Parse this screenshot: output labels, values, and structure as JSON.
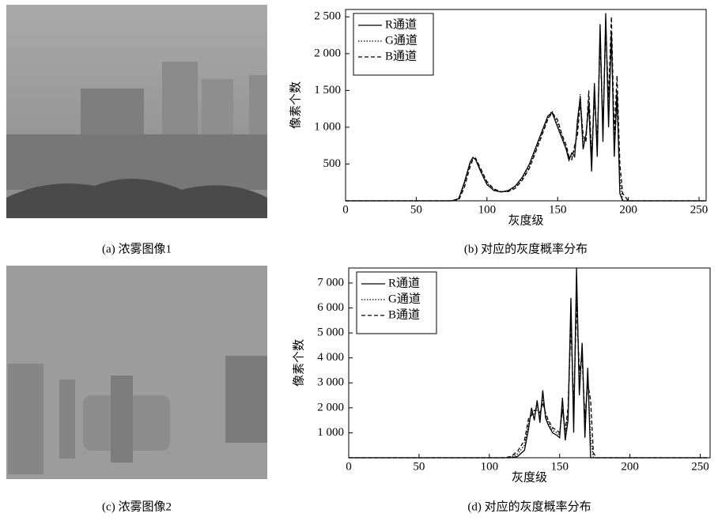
{
  "images": [
    {
      "caption": "(a) 浓雾图像1"
    },
    {
      "caption": "(c) 浓雾图像2"
    }
  ],
  "chart_data": [
    {
      "type": "line",
      "caption": "(b) 对应的灰度概率分布",
      "x_label": "灰度级",
      "y_label": "像素个数",
      "xlim": [
        0,
        255
      ],
      "ylim": [
        0,
        2600
      ],
      "xticks": [
        0,
        50,
        100,
        150,
        200,
        250
      ],
      "yticks": [
        500,
        {
          "value": 1000,
          "label": "1 000"
        },
        {
          "value": 1500,
          "label": "1 500"
        },
        {
          "value": 2000,
          "label": "2 000"
        },
        {
          "value": 2500,
          "label": "2 500"
        }
      ],
      "legend": "upper left",
      "x": [
        0,
        70,
        75,
        80,
        84,
        88,
        90,
        92,
        95,
        100,
        105,
        110,
        115,
        120,
        125,
        130,
        135,
        140,
        143,
        146,
        150,
        153,
        156,
        158,
        160,
        162,
        164,
        166,
        168,
        170,
        172,
        174,
        176,
        178,
        180,
        182,
        184,
        186,
        188,
        190,
        192,
        194,
        196,
        200,
        255
      ],
      "series": [
        {
          "name": "R通道",
          "color": "#000000",
          "dash": "solid",
          "values": [
            0,
            0,
            0,
            30,
            250,
            520,
            590,
            560,
            420,
            220,
            140,
            120,
            140,
            200,
            320,
            500,
            750,
            1000,
            1150,
            1200,
            1000,
            850,
            700,
            550,
            650,
            600,
            1100,
            1400,
            700,
            900,
            1300,
            400,
            1600,
            600,
            2400,
            800,
            2550,
            1000,
            2300,
            600,
            1500,
            100,
            0,
            0,
            0
          ]
        },
        {
          "name": "G通道",
          "color": "#000000",
          "dash": "dotted",
          "values": [
            0,
            0,
            0,
            20,
            220,
            500,
            580,
            570,
            440,
            240,
            150,
            120,
            130,
            190,
            300,
            470,
            720,
            980,
            1120,
            1220,
            1050,
            880,
            720,
            580,
            600,
            700,
            1000,
            1450,
            800,
            850,
            1400,
            500,
            1500,
            700,
            2300,
            900,
            2450,
            1200,
            2200,
            800,
            1300,
            300,
            0,
            0,
            0
          ]
        },
        {
          "name": "B通道",
          "color": "#000000",
          "dash": "dashed",
          "values": [
            0,
            0,
            0,
            10,
            180,
            460,
            560,
            580,
            460,
            260,
            160,
            125,
            125,
            170,
            280,
            440,
            690,
            950,
            1100,
            1200,
            1100,
            900,
            760,
            600,
            560,
            750,
            900,
            1350,
            900,
            800,
            1500,
            600,
            1400,
            800,
            2200,
            1000,
            2350,
            1400,
            2500,
            900,
            1700,
            500,
            100,
            0,
            0
          ]
        }
      ]
    },
    {
      "type": "line",
      "caption": "(d) 对应的灰度概率分布",
      "x_label": "灰度级",
      "y_label": "像素个数",
      "xlim": [
        0,
        257
      ],
      "ylim": [
        0,
        7600
      ],
      "xticks": [
        0,
        50,
        100,
        150,
        200,
        250
      ],
      "yticks": [
        {
          "value": 1000,
          "label": "1 000"
        },
        {
          "value": 2000,
          "label": "2 000"
        },
        {
          "value": 3000,
          "label": "3 000"
        },
        {
          "value": 4000,
          "label": "4 000"
        },
        {
          "value": 5000,
          "label": "5 000"
        },
        {
          "value": 6000,
          "label": "6 000"
        },
        {
          "value": 7000,
          "label": "7 000"
        }
      ],
      "legend": "upper left",
      "x": [
        0,
        110,
        115,
        120,
        125,
        128,
        130,
        132,
        134,
        136,
        138,
        140,
        142,
        145,
        148,
        150,
        152,
        154,
        156,
        158,
        160,
        162,
        164,
        166,
        168,
        170,
        172,
        174,
        176,
        180,
        255
      ],
      "series": [
        {
          "name": "R通道",
          "color": "#000000",
          "dash": "solid",
          "values": [
            0,
            0,
            0,
            50,
            300,
            1200,
            2000,
            1500,
            2300,
            1400,
            2700,
            1600,
            1300,
            1000,
            900,
            800,
            2400,
            700,
            1500,
            6400,
            1000,
            7600,
            2500,
            4600,
            800,
            3600,
            0,
            0,
            0,
            0,
            0
          ]
        },
        {
          "name": "G通道",
          "color": "#000000",
          "dash": "dotted",
          "values": [
            0,
            0,
            20,
            150,
            500,
            1400,
            1800,
            1700,
            2100,
            1600,
            2400,
            1700,
            1400,
            1100,
            1000,
            900,
            2100,
            900,
            1800,
            5800,
            1500,
            6800,
            3000,
            4300,
            1200,
            3300,
            800,
            0,
            0,
            0,
            0
          ]
        },
        {
          "name": "B通道",
          "color": "#000000",
          "dash": "dashed",
          "values": [
            0,
            0,
            40,
            250,
            700,
            1600,
            1700,
            1900,
            1900,
            1800,
            2200,
            1800,
            1500,
            1200,
            1100,
            1000,
            1900,
            1100,
            2000,
            5400,
            2000,
            6200,
            3500,
            4000,
            1600,
            3000,
            2300,
            200,
            0,
            0,
            0
          ]
        }
      ]
    }
  ]
}
